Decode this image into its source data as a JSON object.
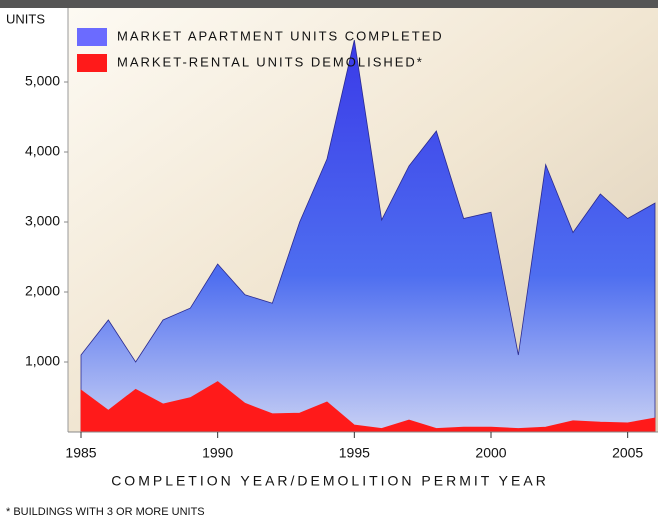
{
  "chart_data": {
    "type": "area",
    "y_axis_label": "UNITS",
    "x_axis_label": "COMPLETION YEAR/DEMOLITION PERMIT YEAR",
    "footnote": "* BUILDINGS WITH 3 OR MORE UNITS",
    "x": [
      1985,
      1986,
      1987,
      1988,
      1989,
      1990,
      1991,
      1992,
      1993,
      1994,
      1995,
      1996,
      1997,
      1998,
      1999,
      2000,
      2001,
      2002,
      2003,
      2004,
      2005,
      2006
    ],
    "series": [
      {
        "name": "MARKET APARTMENT UNITS COMPLETED",
        "color": "#6b6bff",
        "values": [
          1100,
          1600,
          1000,
          1600,
          1770,
          2400,
          1960,
          1840,
          3000,
          3900,
          5600,
          3030,
          3800,
          4300,
          3050,
          3140,
          1100,
          3820,
          2850,
          3400,
          3050,
          3270
        ]
      },
      {
        "name": "MARKET-RENTAL UNITS DEMOLISHED*",
        "color": "#ff1a1a",
        "values": [
          600,
          310,
          610,
          400,
          490,
          720,
          410,
          260,
          270,
          430,
          100,
          50,
          170,
          50,
          70,
          70,
          50,
          70,
          160,
          140,
          130,
          200
        ]
      }
    ],
    "xlim": [
      1985,
      2006
    ],
    "xticks": [
      1985,
      1990,
      1995,
      2000,
      2005
    ],
    "ylim": [
      0,
      6000
    ],
    "yticks": [
      {
        "value": 1000,
        "label": "1,000"
      },
      {
        "value": 2000,
        "label": "2,000"
      },
      {
        "value": 3000,
        "label": "3,000"
      },
      {
        "value": 4000,
        "label": "4,000"
      },
      {
        "value": 5000,
        "label": "5,000"
      }
    ]
  }
}
